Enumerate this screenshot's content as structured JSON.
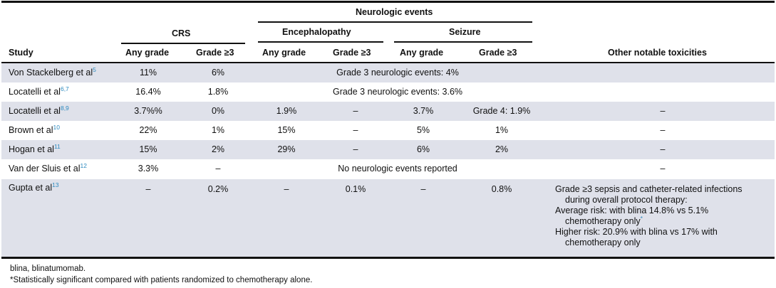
{
  "header": {
    "group_neurologic": "Neurologic events",
    "group_crs": "CRS",
    "group_encephalopathy": "Encephalopathy",
    "group_seizure": "Seizure",
    "col_study": "Study",
    "col_any_grade": "Any grade",
    "col_grade3": "Grade ≥3",
    "col_other": "Other notable toxicities"
  },
  "rows": [
    {
      "study": "Von Stackelberg et al",
      "ref": "5",
      "crs_any": "11%",
      "crs_g3": "6%",
      "merged": "Grade 3 neurologic events: 4%",
      "other": ""
    },
    {
      "study": "Locatelli et al",
      "ref": "6,7",
      "crs_any": "16.4%",
      "crs_g3": "1.8%",
      "merged": "Grade 3 neurologic events: 3.6%",
      "other": ""
    },
    {
      "study": "Locatelli et al",
      "ref": "8,9",
      "crs_any": "3.7%%",
      "crs_g3": "0%",
      "enc_any": "1.9%",
      "enc_g3": "–",
      "sz_any": "3.7%",
      "sz_g3": "Grade 4: 1.9%",
      "other": "–"
    },
    {
      "study": "Brown et al",
      "ref": "10",
      "crs_any": "22%",
      "crs_g3": "1%",
      "enc_any": "15%",
      "enc_g3": "–",
      "sz_any": "5%",
      "sz_g3": "1%",
      "other": "–"
    },
    {
      "study": "Hogan et al",
      "ref": "11",
      "crs_any": "15%",
      "crs_g3": "2%",
      "enc_any": "29%",
      "enc_g3": "–",
      "sz_any": "6%",
      "sz_g3": "2%",
      "other": "–"
    },
    {
      "study": "Van der Sluis et al",
      "ref": "12",
      "crs_any": "3.3%",
      "crs_g3": "–",
      "merged": "No neurologic events reported",
      "other": "–"
    },
    {
      "study": "Gupta et al",
      "ref": "13",
      "crs_any": "–",
      "crs_g3": "0.2%",
      "enc_any": "–",
      "enc_g3": "0.1%",
      "sz_any": "–",
      "sz_g3": "0.8%"
    }
  ],
  "gupta_other": {
    "line1": "Grade ≥3 sepsis and catheter-related infections",
    "line2": "during overall protocol therapy:",
    "line3": "Average risk: with blina 14.8% vs 5.1%",
    "line4": "chemotherapy only",
    "line4_mark": "*",
    "line5": "Higher risk: 20.9% with blina vs 17% with",
    "line6": "chemotherapy only"
  },
  "footnotes": {
    "abbrev": "blina, blinatumomab.",
    "star": "*Statistically significant compared with patients randomized to chemotherapy alone."
  }
}
